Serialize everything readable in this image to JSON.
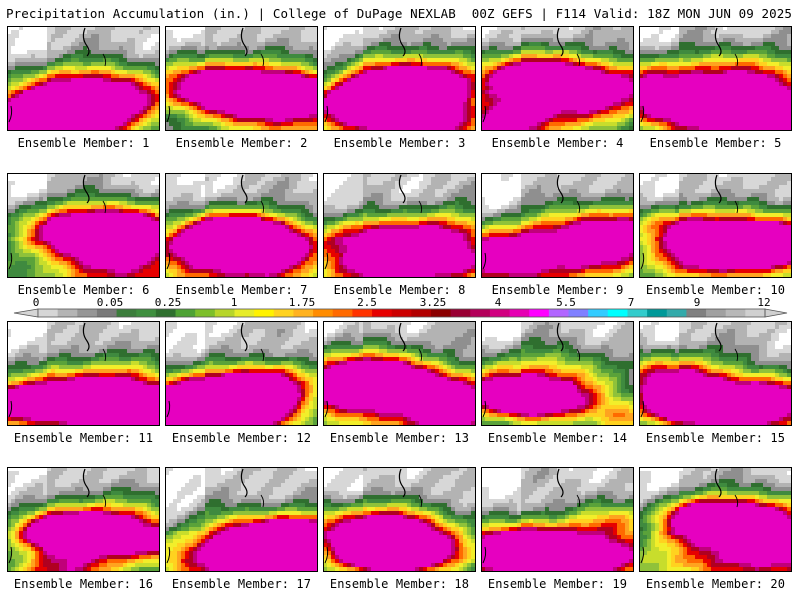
{
  "header": {
    "left": "Precipitation Accumulation (in.) | College of DuPage NEXLAB",
    "right": "00Z GEFS | F114 Valid: 18Z MON JUN 09 2025"
  },
  "panel_label_prefix": "Ensemble Member: ",
  "panels": [
    1,
    2,
    3,
    4,
    5,
    6,
    7,
    8,
    9,
    10,
    11,
    12,
    13,
    14,
    15,
    16,
    17,
    18,
    19,
    20
  ],
  "colorbar": {
    "ticks": [
      "0",
      "0.05",
      "0.25",
      "1",
      "1.75",
      "2.5",
      "3.25",
      "4",
      "5.5",
      "7",
      "9",
      "12"
    ],
    "colors": [
      "#d6d6d6",
      "#b4b4b4",
      "#969696",
      "#7a7a7a",
      "#3c7d3c",
      "#3f8f3f",
      "#2f6f2f",
      "#4ea234",
      "#7dbf2a",
      "#b7d52a",
      "#e6ec29",
      "#fff200",
      "#ffd21f",
      "#ffb21f",
      "#ff8c00",
      "#ff6a00",
      "#ff3300",
      "#e60000",
      "#cc0000",
      "#b20000",
      "#8b0000",
      "#990033",
      "#b3005a",
      "#d10080",
      "#e600b3",
      "#ff00ff",
      "#b266ff",
      "#8080ff",
      "#33ccff",
      "#00ffff",
      "#33cccc",
      "#009999",
      "#33aaaa",
      "#808080",
      "#a0a0a0",
      "#b8b8b8",
      "#d0d0d0"
    ]
  }
}
